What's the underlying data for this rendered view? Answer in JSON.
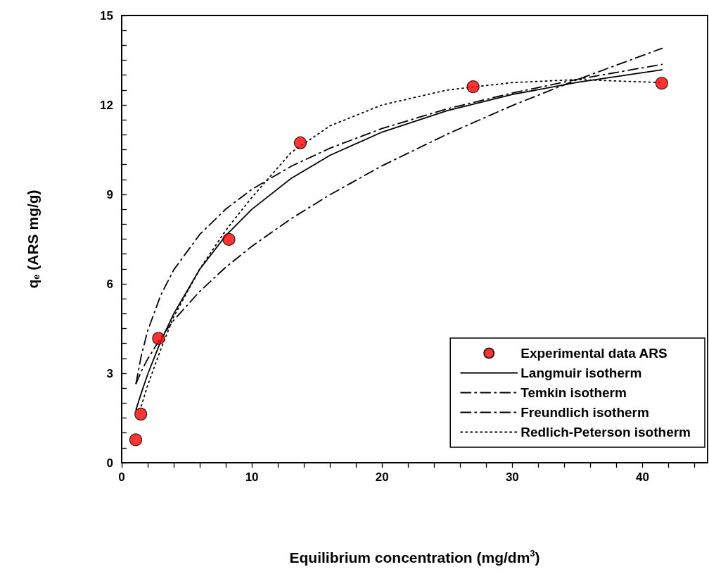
{
  "chart_data": {
    "type": "line",
    "xlabel": "Equilibrium concentration (mg/dm$^{3}$)",
    "ylabel": "q$_{e}$ (ARS mg/g)",
    "xlim": [
      0,
      45
    ],
    "xticks": [
      0,
      {
        "value": 2,
        "label": null
      },
      {
        "value": 4,
        "label": null
      },
      {
        "value": 6,
        "label": null
      },
      {
        "value": 8,
        "label": null
      },
      10,
      {
        "value": 12,
        "label": null
      },
      {
        "value": 14,
        "label": null
      },
      {
        "value": 16,
        "label": null
      },
      {
        "value": 18,
        "label": null
      },
      20,
      {
        "value": 22,
        "label": null
      },
      {
        "value": 24,
        "label": null
      },
      {
        "value": 26,
        "label": null
      },
      {
        "value": 28,
        "label": null
      },
      30,
      {
        "value": 32,
        "label": null
      },
      {
        "value": 34,
        "label": null
      },
      {
        "value": 36,
        "label": null
      },
      {
        "value": 38,
        "label": null
      },
      40,
      {
        "value": 42,
        "label": null
      },
      {
        "value": 44,
        "label": null
      }
    ],
    "ylim": [
      0,
      15
    ],
    "yticks": [
      0,
      {
        "value": 0.5,
        "label": null
      },
      {
        "value": 1,
        "label": null
      },
      {
        "value": 1.5,
        "label": null
      },
      {
        "value": 2,
        "label": null
      },
      {
        "value": 2.5,
        "label": null
      },
      3,
      {
        "value": 3.5,
        "label": null
      },
      {
        "value": 4,
        "label": null
      },
      {
        "value": 4.5,
        "label": null
      },
      {
        "value": 5,
        "label": null
      },
      {
        "value": 5.5,
        "label": null
      },
      6,
      {
        "value": 6.5,
        "label": null
      },
      {
        "value": 7,
        "label": null
      },
      {
        "value": 7.5,
        "label": null
      },
      {
        "value": 8,
        "label": null
      },
      {
        "value": 8.5,
        "label": null
      },
      9,
      {
        "value": 9.5,
        "label": null
      },
      {
        "value": 10,
        "label": null
      },
      {
        "value": 10.5,
        "label": null
      },
      {
        "value": 11,
        "label": null
      },
      {
        "value": 11.5,
        "label": null
      },
      12,
      {
        "value": 12.5,
        "label": null
      },
      {
        "value": 13,
        "label": null
      },
      {
        "value": 13.5,
        "label": null
      },
      {
        "value": 14,
        "label": null
      },
      {
        "value": 14.5,
        "label": null
      },
      15
    ],
    "grid": false,
    "legend": "bottom right",
    "series": [
      {
        "name": "Experimental data ARS",
        "type": "scatter",
        "marker": "circle",
        "color": "#ff0000",
        "x": [
          1.08,
          1.47,
          2.83,
          8.24,
          13.72,
          26.99,
          41.48
        ],
        "values": [
          0.77,
          1.63,
          4.17,
          7.49,
          10.73,
          12.61,
          12.73
        ]
      },
      {
        "name": "Langmuir isotherm",
        "marker": "none",
        "line_style": "solid",
        "color": "#000000",
        "x": [
          1.1,
          1.5,
          2,
          3,
          4,
          6,
          8,
          10,
          13,
          16,
          20,
          25,
          30,
          35,
          41.5
        ],
        "values": [
          1.78,
          2.33,
          2.97,
          4.07,
          5.0,
          6.49,
          7.62,
          8.5,
          9.53,
          10.31,
          11.09,
          11.81,
          12.35,
          12.76,
          13.18
        ]
      },
      {
        "name": "Temkin isotherm",
        "marker": "none",
        "line_style": "dashed",
        "color": "#000000",
        "x": [
          1.1,
          1.5,
          2,
          3,
          4,
          6,
          8,
          10,
          13,
          16,
          20,
          25,
          30,
          35,
          41.5
        ],
        "values": [
          2.66,
          3.58,
          4.43,
          5.62,
          6.47,
          7.66,
          8.51,
          9.17,
          9.94,
          10.55,
          11.21,
          11.87,
          12.4,
          12.86,
          13.36
        ]
      },
      {
        "name": "Freundlich isotherm",
        "marker": "none",
        "line_style": "dashed",
        "color": "#000000",
        "x": [
          1.1,
          1.5,
          2,
          3,
          4,
          6,
          8,
          10,
          13,
          16,
          20,
          25,
          30,
          35,
          41.5
        ],
        "values": [
          2.65,
          3.06,
          3.48,
          4.19,
          4.78,
          5.75,
          6.56,
          7.26,
          8.18,
          8.99,
          9.96,
          11.02,
          11.98,
          12.85,
          13.9
        ]
      },
      {
        "name": "Redlich-Peterson isotherm",
        "marker": "none",
        "line_style": "dotted",
        "color": "#000000",
        "x": [
          1.5,
          2,
          3,
          4,
          6,
          8,
          10,
          13,
          16,
          20,
          25,
          30,
          35,
          41.5
        ],
        "values": [
          1.9,
          2.6,
          3.8,
          4.9,
          6.5,
          7.8,
          8.9,
          10.4,
          11.3,
          12.0,
          12.5,
          12.75,
          12.85,
          12.75
        ]
      }
    ]
  }
}
